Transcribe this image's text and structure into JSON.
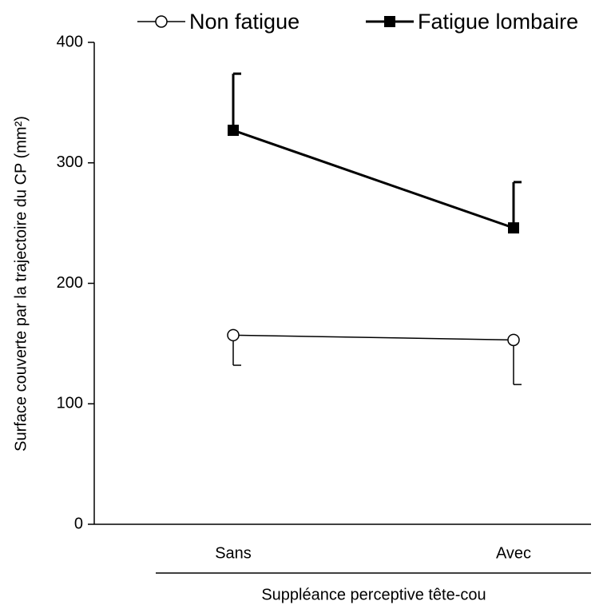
{
  "chart_data": {
    "type": "line",
    "ylabel": "Surface couverte par la trajectoire du CP (mm²)",
    "xlabel": "Suppléance perceptive tête-cou",
    "categories": [
      "Sans",
      "Avec"
    ],
    "series": [
      {
        "name": "Non fatigue",
        "color": "#000000",
        "marker": "open-circle",
        "values": [
          157,
          153
        ],
        "errors": [
          25,
          37
        ],
        "error_direction": "down"
      },
      {
        "name": "Fatigue lombaire",
        "color": "#000000",
        "marker": "filled-square",
        "values": [
          327,
          246
        ],
        "errors": [
          47,
          38
        ],
        "error_direction": "up"
      }
    ],
    "ylim": [
      0,
      400
    ],
    "yticks": [
      0,
      100,
      200,
      300,
      400
    ]
  }
}
